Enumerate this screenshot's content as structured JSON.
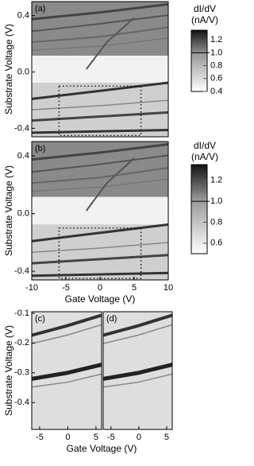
{
  "chart_data": [
    {
      "type": "heatmap",
      "panel_label": "(a)",
      "ylabel": "Substrate Voltage (V)",
      "xlim": [
        -10,
        10
      ],
      "ylim": [
        -0.46,
        0.5
      ],
      "yticks": [
        0.4,
        {
          "value": 0,
          "label": "0.0"
        },
        -0.4
      ],
      "zoom_box": {
        "xlim": [
          -6,
          6
        ],
        "ylim": [
          -0.45,
          -0.1
        ]
      }
    },
    {
      "type": "heatmap",
      "panel_label": "(b)",
      "ylabel": "Substrate Voltage (V)",
      "xlabel": "Gate Voltage (V)",
      "xlim": [
        -10,
        10
      ],
      "ylim": [
        -0.46,
        0.5
      ],
      "xticks": [
        -10,
        -5,
        0,
        5,
        10
      ],
      "yticks": [
        0.4,
        {
          "value": 0,
          "label": "0.0"
        },
        -0.4
      ],
      "zoom_box": {
        "xlim": [
          -6,
          6
        ],
        "ylim": [
          -0.45,
          -0.1
        ]
      }
    },
    {
      "type": "heatmap",
      "panel_label": "(c)",
      "ylabel": "Substrate Voltage (V)",
      "xlabel": "Gate Voltage (V)",
      "xlim": [
        -6.4,
        6
      ],
      "ylim": [
        -0.49,
        -0.095
      ],
      "xticks": [
        -5,
        0,
        5
      ],
      "yticks": [
        -0.1,
        -0.2,
        -0.3,
        -0.4
      ]
    },
    {
      "type": "heatmap",
      "panel_label": "(d)",
      "xlim": [
        -6.4,
        6
      ],
      "ylim": [
        -0.49,
        -0.095
      ],
      "xticks": [
        -5,
        0,
        5
      ]
    },
    {
      "type": "colorbar",
      "title": [
        "dI/dV",
        "(nA/V)"
      ],
      "ylim": [
        0.4,
        1.35
      ],
      "yticks": [
        1.2,
        {
          "value": 1,
          "label": "1.0"
        },
        0.8,
        0.6,
        0.4
      ]
    },
    {
      "type": "colorbar",
      "title": [
        "dI/dV",
        "(nA/V)"
      ],
      "ylim": [
        0.5,
        1.35
      ],
      "yticks": [
        1.2,
        {
          "value": 1,
          "label": "1.0"
        },
        0.8,
        0.6
      ]
    }
  ]
}
